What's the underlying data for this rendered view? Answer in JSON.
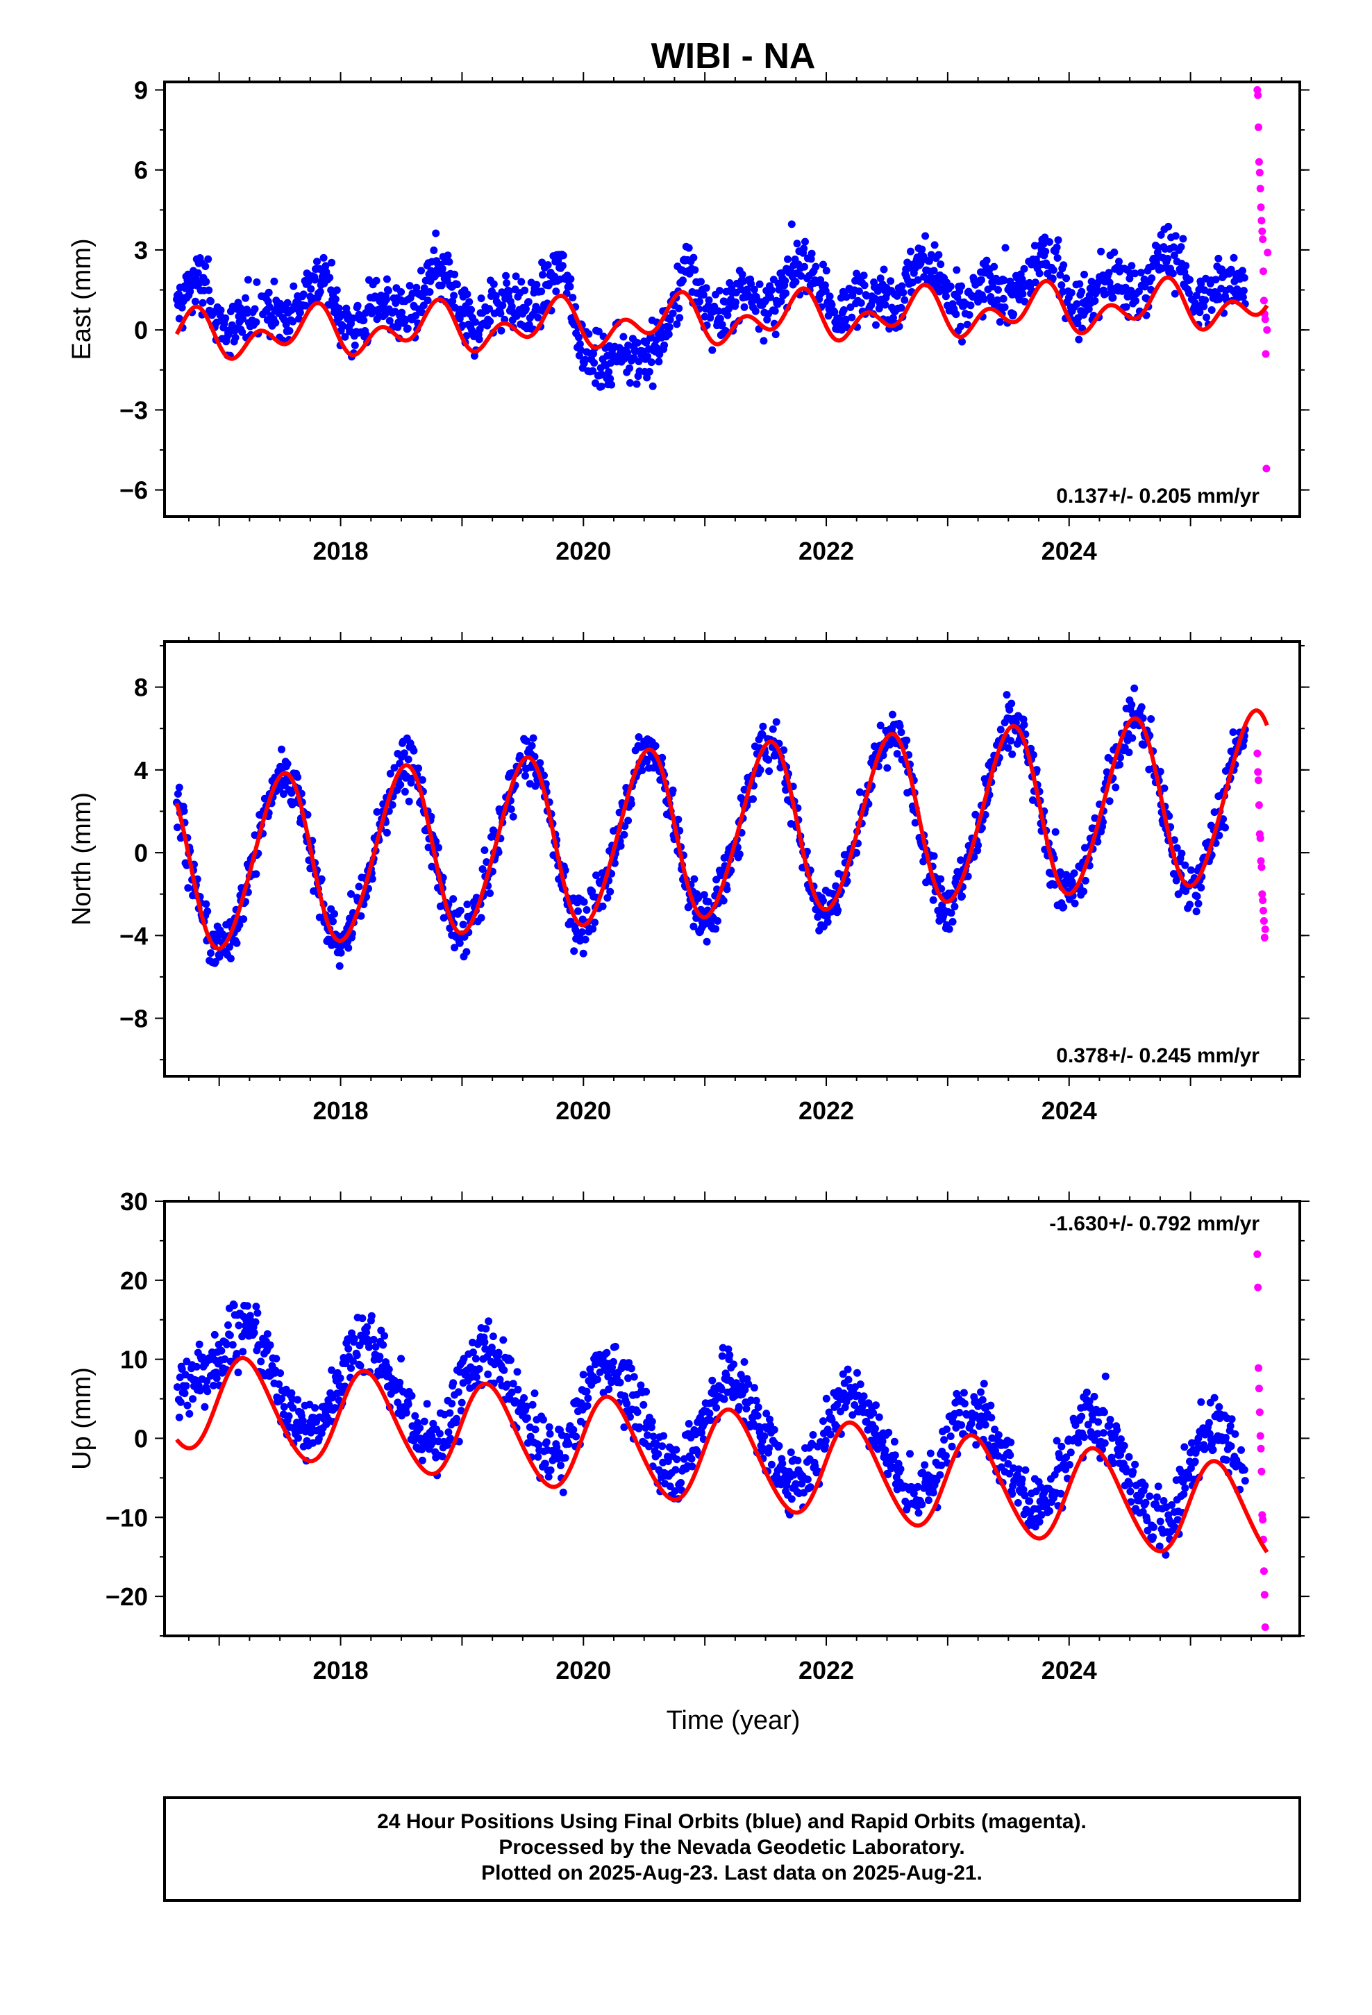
{
  "title": "WIBI - NA",
  "xlabel": "Time (year)",
  "footer": {
    "line1": "24 Hour Positions Using Final Orbits (blue) and Rapid Orbits (magenta).",
    "line2": "Processed by the Nevada Geodetic Laboratory.",
    "line3": "Plotted on 2025-Aug-23. Last data on 2025-Aug-21."
  },
  "colors": {
    "final": "#0000ff",
    "rapid": "#ff00ff",
    "model": "#ff0000",
    "axis": "#000000"
  },
  "chart_data": [
    {
      "type": "scatter",
      "ylabel": "East (mm)",
      "rate_label": "0.137+/- 0.205 mm/yr",
      "rate_position": "bottom-right",
      "xlim": [
        2016.55,
        2025.9
      ],
      "ylim": [
        -7.0,
        9.3
      ],
      "xticks": [
        2018,
        2020,
        2022,
        2024
      ],
      "yticks": [
        -6,
        -3,
        0,
        3,
        6,
        9
      ],
      "yticklabels": [
        "−6",
        "−3",
        "0",
        "3",
        "6",
        "9"
      ],
      "series": [
        {
          "values_kind": "daily_final",
          "x_start": 2016.65,
          "x_end": 2025.45,
          "step": 0.0055,
          "model": {
            "mean": 0.7,
            "trend": 0.137,
            "annual_amp": 0.55,
            "annual_phase": 0.5,
            "semi_amp": 0.6,
            "semi_phase": 1.2,
            "noise": 1.1
          },
          "offsets": [
            {
              "from": 2019.9,
              "to": 2020.8,
              "shift": -2.0
            }
          ]
        },
        {
          "values_kind": "rapid",
          "x": [
            2025.55,
            2025.555,
            2025.56,
            2025.565,
            2025.57,
            2025.575,
            2025.58,
            2025.585,
            2025.59,
            2025.595,
            2025.6,
            2025.605,
            2025.61,
            2025.615,
            2025.62,
            2025.625,
            2025.63,
            2025.635
          ],
          "y": [
            9.0,
            8.8,
            7.6,
            6.3,
            5.9,
            5.3,
            4.6,
            4.1,
            3.7,
            3.4,
            2.2,
            1.1,
            0.6,
            0.4,
            -0.9,
            -5.2,
            0.0,
            2.9
          ]
        },
        {
          "values_kind": "fit",
          "x_start": 2016.65,
          "x_end": 2025.63,
          "model": {
            "mean": -0.25,
            "trend": 0.137,
            "annual_amp": 0.55,
            "annual_phase": 0.5,
            "semi_amp": 0.6,
            "semi_phase": 1.2
          }
        }
      ]
    },
    {
      "type": "scatter",
      "ylabel": "North (mm)",
      "rate_label": "0.378+/- 0.245 mm/yr",
      "rate_position": "bottom-right",
      "xlim": [
        2016.55,
        2025.9
      ],
      "ylim": [
        -10.8,
        10.2
      ],
      "xticks": [
        2018,
        2020,
        2022,
        2024
      ],
      "yticks": [
        -8,
        -4,
        0,
        4,
        8
      ],
      "yticklabels": [
        "−8",
        "−4",
        "0",
        "4",
        "8"
      ],
      "series": [
        {
          "values_kind": "daily_final",
          "x_start": 2016.65,
          "x_end": 2025.45,
          "step": 0.0055,
          "model": {
            "mean": -0.7,
            "trend": 0.378,
            "annual_amp": 4.1,
            "annual_phase": 0.27,
            "semi_amp": 0.3,
            "semi_phase": 0.0,
            "noise": 1.3
          },
          "offsets": []
        },
        {
          "values_kind": "rapid",
          "x": [
            2025.55,
            2025.555,
            2025.56,
            2025.565,
            2025.57,
            2025.575,
            2025.58,
            2025.585,
            2025.59,
            2025.595,
            2025.6,
            2025.605,
            2025.61,
            2025.615
          ],
          "y": [
            4.8,
            3.9,
            3.5,
            2.3,
            0.9,
            0.7,
            -0.4,
            -0.7,
            -2.0,
            -2.3,
            -2.8,
            -3.3,
            -4.1,
            -3.7
          ]
        },
        {
          "values_kind": "fit",
          "x_start": 2016.65,
          "x_end": 2025.63,
          "model": {
            "mean": -0.7,
            "trend": 0.378,
            "annual_amp": 4.1,
            "annual_phase": 0.27,
            "semi_amp": 0.3,
            "semi_phase": 0.0
          }
        }
      ]
    },
    {
      "type": "scatter",
      "ylabel": "Up (mm)",
      "rate_label": "-1.630+/- 0.792 mm/yr",
      "rate_position": "top-right",
      "xlim": [
        2016.55,
        2025.9
      ],
      "ylim": [
        -25.0,
        30.0
      ],
      "xticks": [
        2018,
        2020,
        2022,
        2024
      ],
      "yticks": [
        -20,
        -10,
        0,
        10,
        20,
        30
      ],
      "yticklabels": [
        "−20",
        "−10",
        "0",
        "10",
        "20",
        "30"
      ],
      "series": [
        {
          "values_kind": "daily_final",
          "x_start": 2016.65,
          "x_end": 2025.45,
          "step": 0.0055,
          "model": {
            "mean": 8.8,
            "trend": -1.63,
            "annual_amp": 6.0,
            "annual_phase": 0.97,
            "semi_amp": 0.5,
            "semi_phase": 0.0,
            "noise": 4.2
          },
          "offsets": [
            {
              "from": 2016.65,
              "to": 2017.0,
              "shift": 4.0
            }
          ]
        },
        {
          "values_kind": "rapid",
          "x": [
            2025.55,
            2025.555,
            2025.56,
            2025.565,
            2025.57,
            2025.575,
            2025.58,
            2025.585,
            2025.59,
            2025.595,
            2025.6,
            2025.605,
            2025.61,
            2025.615
          ],
          "y": [
            23.3,
            19.1,
            8.9,
            6.3,
            3.3,
            0.3,
            -1.3,
            -4.2,
            -9.7,
            -10.3,
            -12.8,
            -16.8,
            -19.8,
            -23.9
          ]
        },
        {
          "values_kind": "fit",
          "x_start": 2016.65,
          "x_end": 2025.63,
          "model": {
            "mean": 4.8,
            "trend": -1.63,
            "annual_amp": 6.0,
            "annual_phase": 0.97,
            "semi_amp": 0.5,
            "semi_phase": 0.0
          }
        }
      ]
    }
  ]
}
